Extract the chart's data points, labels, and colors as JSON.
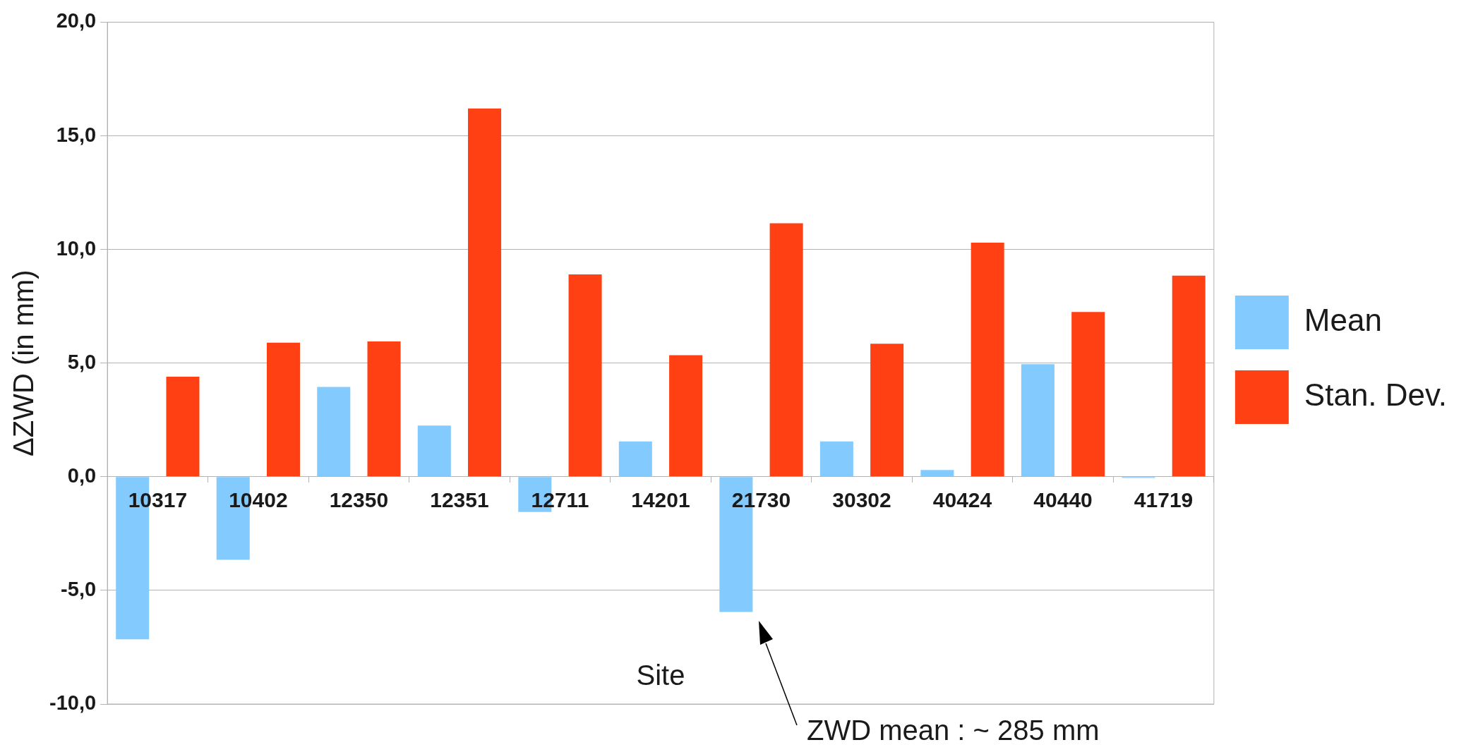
{
  "chart_data": {
    "type": "bar",
    "xlabel": "Site",
    "ylabel": "ΔZWD (in mm)",
    "categories": [
      "10317",
      "10402",
      "12350",
      "12351",
      "12711",
      "14201",
      "21730",
      "30302",
      "40424",
      "40440",
      "41719"
    ],
    "series": [
      {
        "name": "Mean",
        "color": "#83caff",
        "values": [
          -7.15,
          -3.65,
          3.95,
          2.25,
          -1.55,
          1.55,
          -5.95,
          1.55,
          0.3,
          4.95,
          -0.05
        ]
      },
      {
        "name": "Stan. Dev.",
        "color": "#ff4013",
        "values": [
          4.4,
          5.9,
          5.95,
          16.2,
          8.9,
          5.35,
          11.15,
          5.85,
          10.3,
          7.25,
          8.85
        ]
      }
    ],
    "ylim": [
      -10,
      20
    ],
    "yticks": [
      {
        "value": -10,
        "label": "-10,0"
      },
      {
        "value": -5,
        "label": "-5,0"
      },
      {
        "value": 0,
        "label": "0,0"
      },
      {
        "value": 5,
        "label": "5,0"
      },
      {
        "value": 10,
        "label": "10,0"
      },
      {
        "value": 15,
        "label": "15,0"
      },
      {
        "value": 20,
        "label": "20,0"
      }
    ],
    "grid": "y",
    "legend": "right",
    "annotations": [
      "ZWD mean : ~ 285 mm"
    ]
  }
}
